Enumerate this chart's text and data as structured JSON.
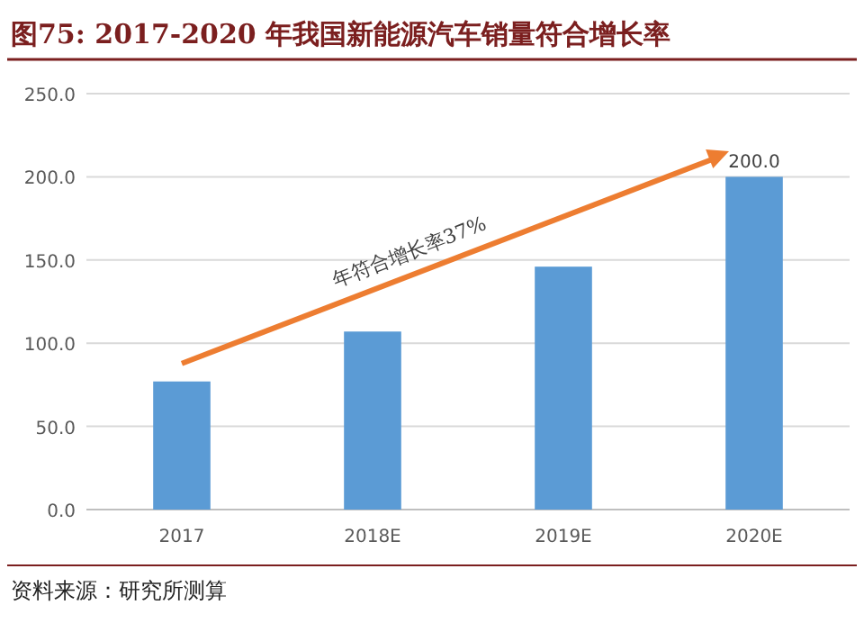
{
  "chart_data": {
    "type": "bar",
    "title": "图75:  2017-2020 年我国新能源汽车销量符合增长率",
    "categories": [
      "2017",
      "2018E",
      "2019E",
      "2020E"
    ],
    "values": [
      77,
      107,
      146,
      200
    ],
    "value_labels": [
      null,
      null,
      null,
      "200.0"
    ],
    "color": "#5b9bd5",
    "ylim": [
      0,
      250
    ],
    "yticks": [
      {
        "value": 0,
        "label": "0.0"
      },
      {
        "value": 50,
        "label": "50.0"
      },
      {
        "value": 100,
        "label": "100.0"
      },
      {
        "value": 150,
        "label": "150.0"
      },
      {
        "value": 200,
        "label": "200.0"
      },
      {
        "value": 250,
        "label": "250.0"
      }
    ],
    "grid": "y",
    "annotations": [
      "年符合增长率37%",
      "资料来源：研究所测算"
    ]
  }
}
